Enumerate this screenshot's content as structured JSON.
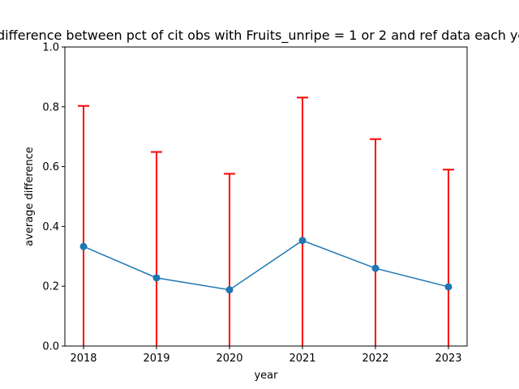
{
  "chart_data": {
    "type": "line",
    "title": "Average difference between pct of cit obs with Fruits_unripe = 1 or 2 and ref data each year for Siris",
    "xlabel": "year",
    "ylabel": "average difference",
    "categories": [
      "2018",
      "2019",
      "2020",
      "2021",
      "2022",
      "2023"
    ],
    "values": [
      0.333,
      0.228,
      0.188,
      0.353,
      0.26,
      0.198
    ],
    "error_upper": [
      0.803,
      0.649,
      0.576,
      0.831,
      0.692,
      0.59
    ],
    "error_lower": [
      0.0,
      0.0,
      0.0,
      0.0,
      0.0,
      0.0
    ],
    "ylim": [
      0,
      1.0
    ],
    "yticks": [
      "0.0",
      "0.2",
      "0.4",
      "0.6",
      "0.8",
      "1.0"
    ],
    "grid": false,
    "colors": {
      "line": "#1f77b4",
      "error": "#ff0000"
    }
  }
}
